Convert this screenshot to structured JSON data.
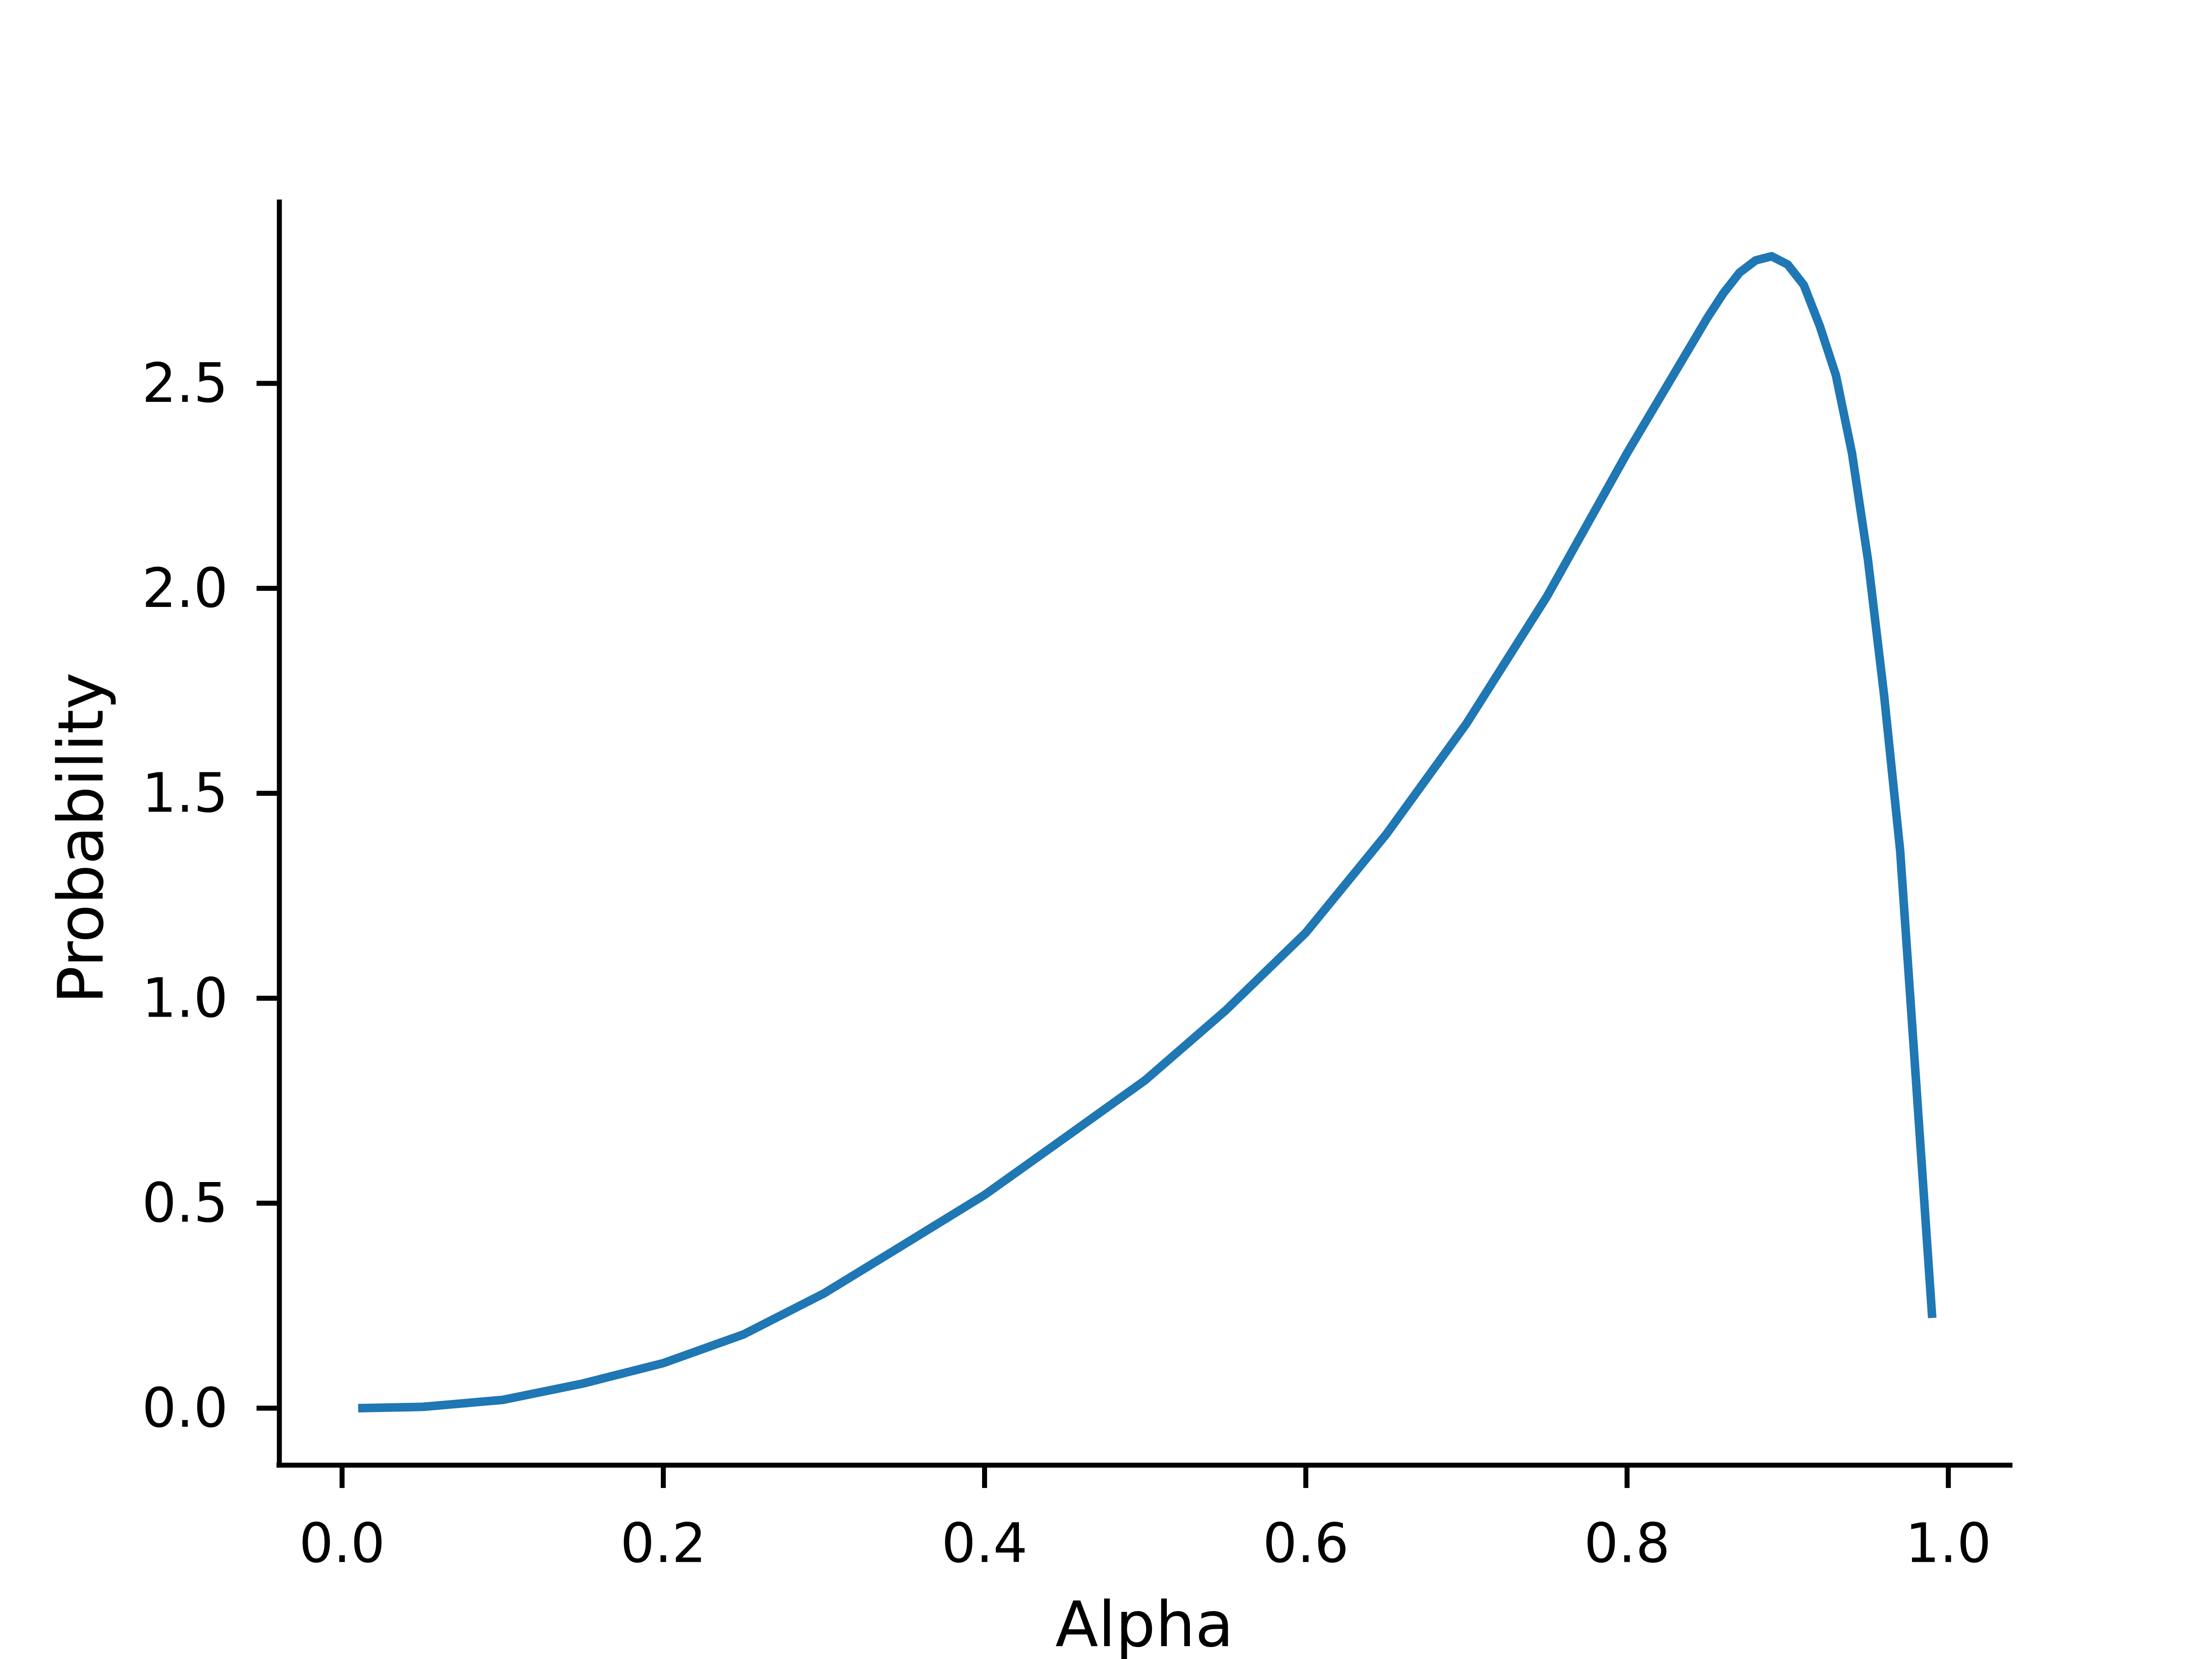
{
  "chart_data": {
    "type": "line",
    "title": "",
    "xlabel": "Alpha",
    "ylabel": "Probability",
    "xlim": [
      -0.04,
      1.04
    ],
    "ylim": [
      -0.14,
      2.95
    ],
    "xticks": [
      "0.0",
      "0.2",
      "0.4",
      "0.6",
      "0.8",
      "1.0"
    ],
    "yticks": [
      "0.0",
      "0.5",
      "1.0",
      "1.5",
      "2.0",
      "2.5"
    ],
    "grid": false,
    "color": "#1f77b4",
    "series": [
      {
        "x": [
          0.01,
          0.05,
          0.1,
          0.15,
          0.2,
          0.25,
          0.3,
          0.35,
          0.4,
          0.45,
          0.5,
          0.55,
          0.6,
          0.65,
          0.7,
          0.75,
          0.8,
          0.85,
          0.86,
          0.87,
          0.88,
          0.89,
          0.9,
          0.91,
          0.92,
          0.93,
          0.94,
          0.95,
          0.96,
          0.97,
          0.98,
          0.99
        ],
        "y": [
          0.0,
          0.003,
          0.02,
          0.06,
          0.11,
          0.18,
          0.28,
          0.4,
          0.52,
          0.66,
          0.8,
          0.97,
          1.16,
          1.4,
          1.67,
          1.98,
          2.33,
          2.66,
          2.72,
          2.77,
          2.8,
          2.81,
          2.79,
          2.74,
          2.64,
          2.52,
          2.33,
          2.07,
          1.74,
          1.36,
          0.79,
          0.22
        ]
      }
    ]
  }
}
